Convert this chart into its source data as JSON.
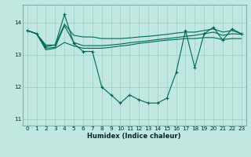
{
  "xlabel": "Humidex (Indice chaleur)",
  "background_color": "#c0e8e0",
  "grid_color": "#a0ccc4",
  "line_color": "#006858",
  "x_values": [
    0,
    1,
    2,
    3,
    4,
    5,
    6,
    7,
    8,
    9,
    10,
    11,
    12,
    13,
    14,
    15,
    16,
    17,
    18,
    19,
    20,
    21,
    22,
    23
  ],
  "series_main": [
    13.75,
    13.65,
    13.25,
    13.3,
    14.25,
    13.35,
    13.1,
    13.1,
    12.0,
    11.75,
    11.5,
    11.75,
    11.6,
    11.5,
    11.5,
    11.65,
    12.45,
    13.75,
    12.6,
    13.65,
    13.85,
    13.45,
    13.8,
    13.65
  ],
  "series_top": [
    13.75,
    13.65,
    13.3,
    13.3,
    13.95,
    13.6,
    13.55,
    13.55,
    13.5,
    13.5,
    13.5,
    13.52,
    13.55,
    13.57,
    13.6,
    13.63,
    13.67,
    13.7,
    13.7,
    13.75,
    13.8,
    13.7,
    13.75,
    13.65
  ],
  "series_mid": [
    13.75,
    13.65,
    13.2,
    13.23,
    13.9,
    13.38,
    13.28,
    13.28,
    13.28,
    13.3,
    13.33,
    13.37,
    13.4,
    13.43,
    13.47,
    13.5,
    13.53,
    13.57,
    13.6,
    13.65,
    13.7,
    13.6,
    13.65,
    13.63
  ],
  "series_low": [
    13.75,
    13.65,
    13.15,
    13.2,
    13.38,
    13.27,
    13.2,
    13.2,
    13.2,
    13.23,
    13.27,
    13.3,
    13.35,
    13.38,
    13.42,
    13.45,
    13.47,
    13.5,
    13.5,
    13.53,
    13.53,
    13.47,
    13.5,
    13.5
  ],
  "ylim": [
    10.8,
    14.55
  ],
  "yticks": [
    11,
    12,
    13,
    14
  ],
  "xticks": [
    0,
    1,
    2,
    3,
    4,
    5,
    6,
    7,
    8,
    9,
    10,
    11,
    12,
    13,
    14,
    15,
    16,
    17,
    18,
    19,
    20,
    21,
    22,
    23
  ]
}
